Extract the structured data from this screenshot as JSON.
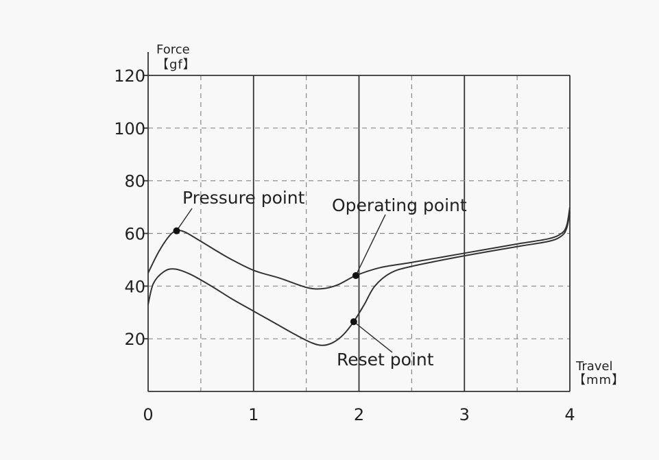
{
  "chart_data": {
    "type": "line",
    "title": "",
    "ylabel": "Force",
    "ylabel_unit": "【gf】",
    "xlabel": "Travel",
    "xlabel_unit": "【mm】",
    "xlim": [
      0,
      4
    ],
    "ylim": [
      0,
      120
    ],
    "x_ticks": [
      "0",
      "1",
      "2",
      "3",
      "4"
    ],
    "y_ticks": [
      "20",
      "40",
      "60",
      "80",
      "100",
      "120"
    ],
    "grid": "on",
    "series": [
      {
        "x": [
          0,
          0.1,
          0.2,
          0.27,
          0.35,
          0.5,
          0.75,
          1.0,
          1.25,
          1.5,
          1.65,
          1.8,
          1.97,
          2.2,
          2.5,
          3.0,
          3.5,
          3.8,
          3.92,
          3.97,
          4.0
        ],
        "values": [
          45,
          53,
          59,
          61,
          60.5,
          57,
          51,
          46,
          43,
          39.5,
          39,
          40.5,
          44,
          47,
          49,
          52.5,
          56,
          58,
          60,
          63,
          70
        ]
      },
      {
        "x": [
          0,
          0.05,
          0.15,
          0.25,
          0.4,
          0.6,
          0.8,
          1.0,
          1.2,
          1.4,
          1.55,
          1.65,
          1.75,
          1.85,
          1.95,
          2.05,
          2.15,
          2.3,
          2.5,
          3.0,
          3.5,
          3.8,
          3.92,
          3.97,
          4.0
        ],
        "values": [
          33,
          41,
          45.5,
          46.5,
          44.5,
          40,
          35,
          30.5,
          26,
          21.5,
          18.5,
          17.5,
          18.5,
          21.5,
          26.5,
          33,
          40,
          45,
          47.5,
          51.5,
          55,
          57,
          59,
          62,
          68
        ]
      }
    ],
    "annotations": [
      {
        "label": "Pressure point",
        "x": 0.27,
        "y": 61
      },
      {
        "label": "Operating point",
        "x": 1.97,
        "y": 44
      },
      {
        "label": "Reset point",
        "x": 1.95,
        "y": 26.5
      }
    ]
  }
}
